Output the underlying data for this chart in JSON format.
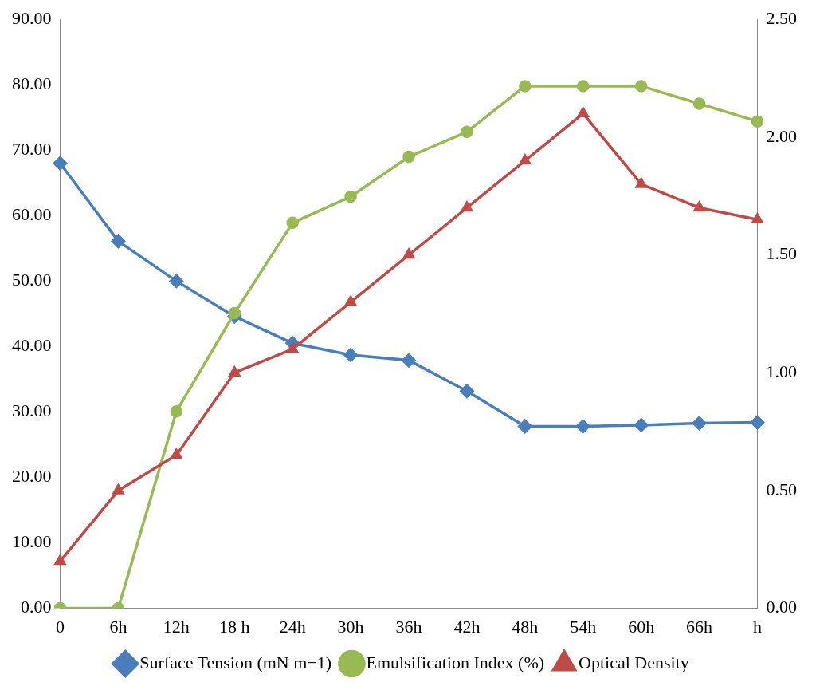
{
  "chart_data": {
    "type": "line",
    "categories": [
      "0",
      "6h",
      "12h",
      "18 h",
      "24h",
      "30h",
      "36h",
      "42h",
      "48h",
      "54h",
      "60h",
      "66h",
      "h"
    ],
    "series": [
      {
        "name": "Surface Tension (mN m−1)",
        "color": "#4a7ebb",
        "marker": "diamond",
        "values": [
          68,
          56.1,
          50,
          44.6,
          40.5,
          38.7,
          37.9,
          33.2,
          27.8,
          27.8,
          28,
          28.3,
          28.4
        ]
      },
      {
        "name": "Emulsification Index (%)",
        "color": "#98b954",
        "marker": "circle",
        "values": [
          0,
          0,
          30.1,
          45.1,
          58.9,
          62.9,
          69,
          72.8,
          79.8,
          79.8,
          79.8,
          77.1,
          74.4
        ]
      },
      {
        "name": "Optical Density",
        "color": "#be4b48",
        "marker": "triangle",
        "axis": "y2",
        "values": [
          0.2,
          0.5,
          0.65,
          1.0,
          1.1,
          1.3,
          1.5,
          1.7,
          1.9,
          2.1,
          1.8,
          1.7,
          1.65
        ]
      }
    ],
    "ylim": [
      0,
      90
    ],
    "yticks": [
      {
        "value": 0,
        "label": "0.00"
      },
      {
        "value": 10,
        "label": "10.00"
      },
      {
        "value": 20,
        "label": "20.00"
      },
      {
        "value": 30,
        "label": "30.00"
      },
      {
        "value": 40,
        "label": "40.00"
      },
      {
        "value": 50,
        "label": "50.00"
      },
      {
        "value": 60,
        "label": "60.00"
      },
      {
        "value": 70,
        "label": "70.00"
      },
      {
        "value": 80,
        "label": "80.00"
      },
      {
        "value": 90,
        "label": "90.00"
      }
    ],
    "y2lim": [
      0,
      2.5
    ],
    "y2ticks": [
      {
        "value": 0,
        "label": "0.00"
      },
      {
        "value": 0.5,
        "label": "0.50"
      },
      {
        "value": 1,
        "label": "1.00"
      },
      {
        "value": 1.5,
        "label": "1.50"
      },
      {
        "value": 2,
        "label": "2.00"
      },
      {
        "value": 2.5,
        "label": "2.50"
      }
    ],
    "grid": false,
    "legend": "bottom",
    "line_style": "solid"
  }
}
